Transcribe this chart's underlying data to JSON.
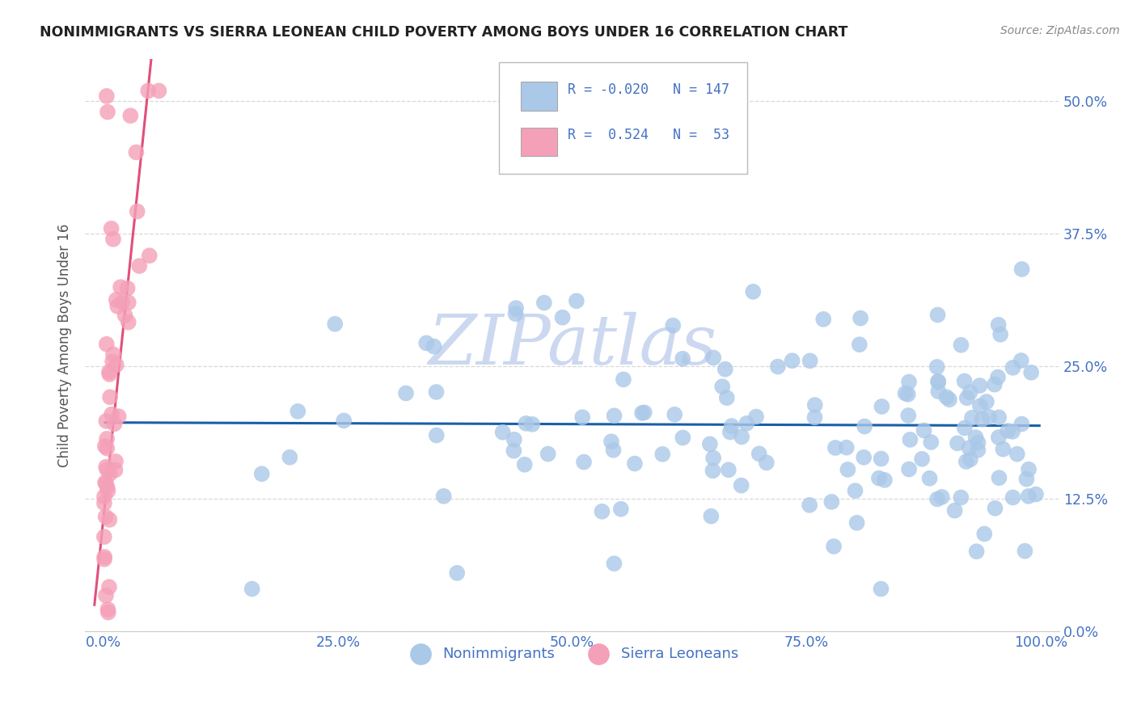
{
  "title": "NONIMMIGRANTS VS SIERRA LEONEAN CHILD POVERTY AMONG BOYS UNDER 16 CORRELATION CHART",
  "source": "Source: ZipAtlas.com",
  "ylabel": "Child Poverty Among Boys Under 16",
  "xlim": [
    -0.02,
    1.02
  ],
  "ylim": [
    0.0,
    0.54
  ],
  "yticks": [
    0.0,
    0.125,
    0.25,
    0.375,
    0.5
  ],
  "ytick_labels": [
    "0.0%",
    "12.5%",
    "25.0%",
    "37.5%",
    "50.0%"
  ],
  "xticks": [
    0.0,
    0.25,
    0.5,
    0.75,
    1.0
  ],
  "xtick_labels": [
    "0.0%",
    "25.0%",
    "50.0%",
    "75.0%",
    "100.0%"
  ],
  "blue_color": "#aac8e8",
  "pink_color": "#f4a0b8",
  "blue_line_color": "#1a5fa8",
  "pink_line_color": "#e0507a",
  "tick_color": "#4472c4",
  "background_color": "#ffffff",
  "grid_color": "#d8d8d8",
  "title_color": "#222222",
  "axis_label_color": "#555555",
  "watermark_color": "#ccd8f0",
  "legend_blue_label": "Nonimmigrants",
  "legend_pink_label": "Sierra Leoneans"
}
